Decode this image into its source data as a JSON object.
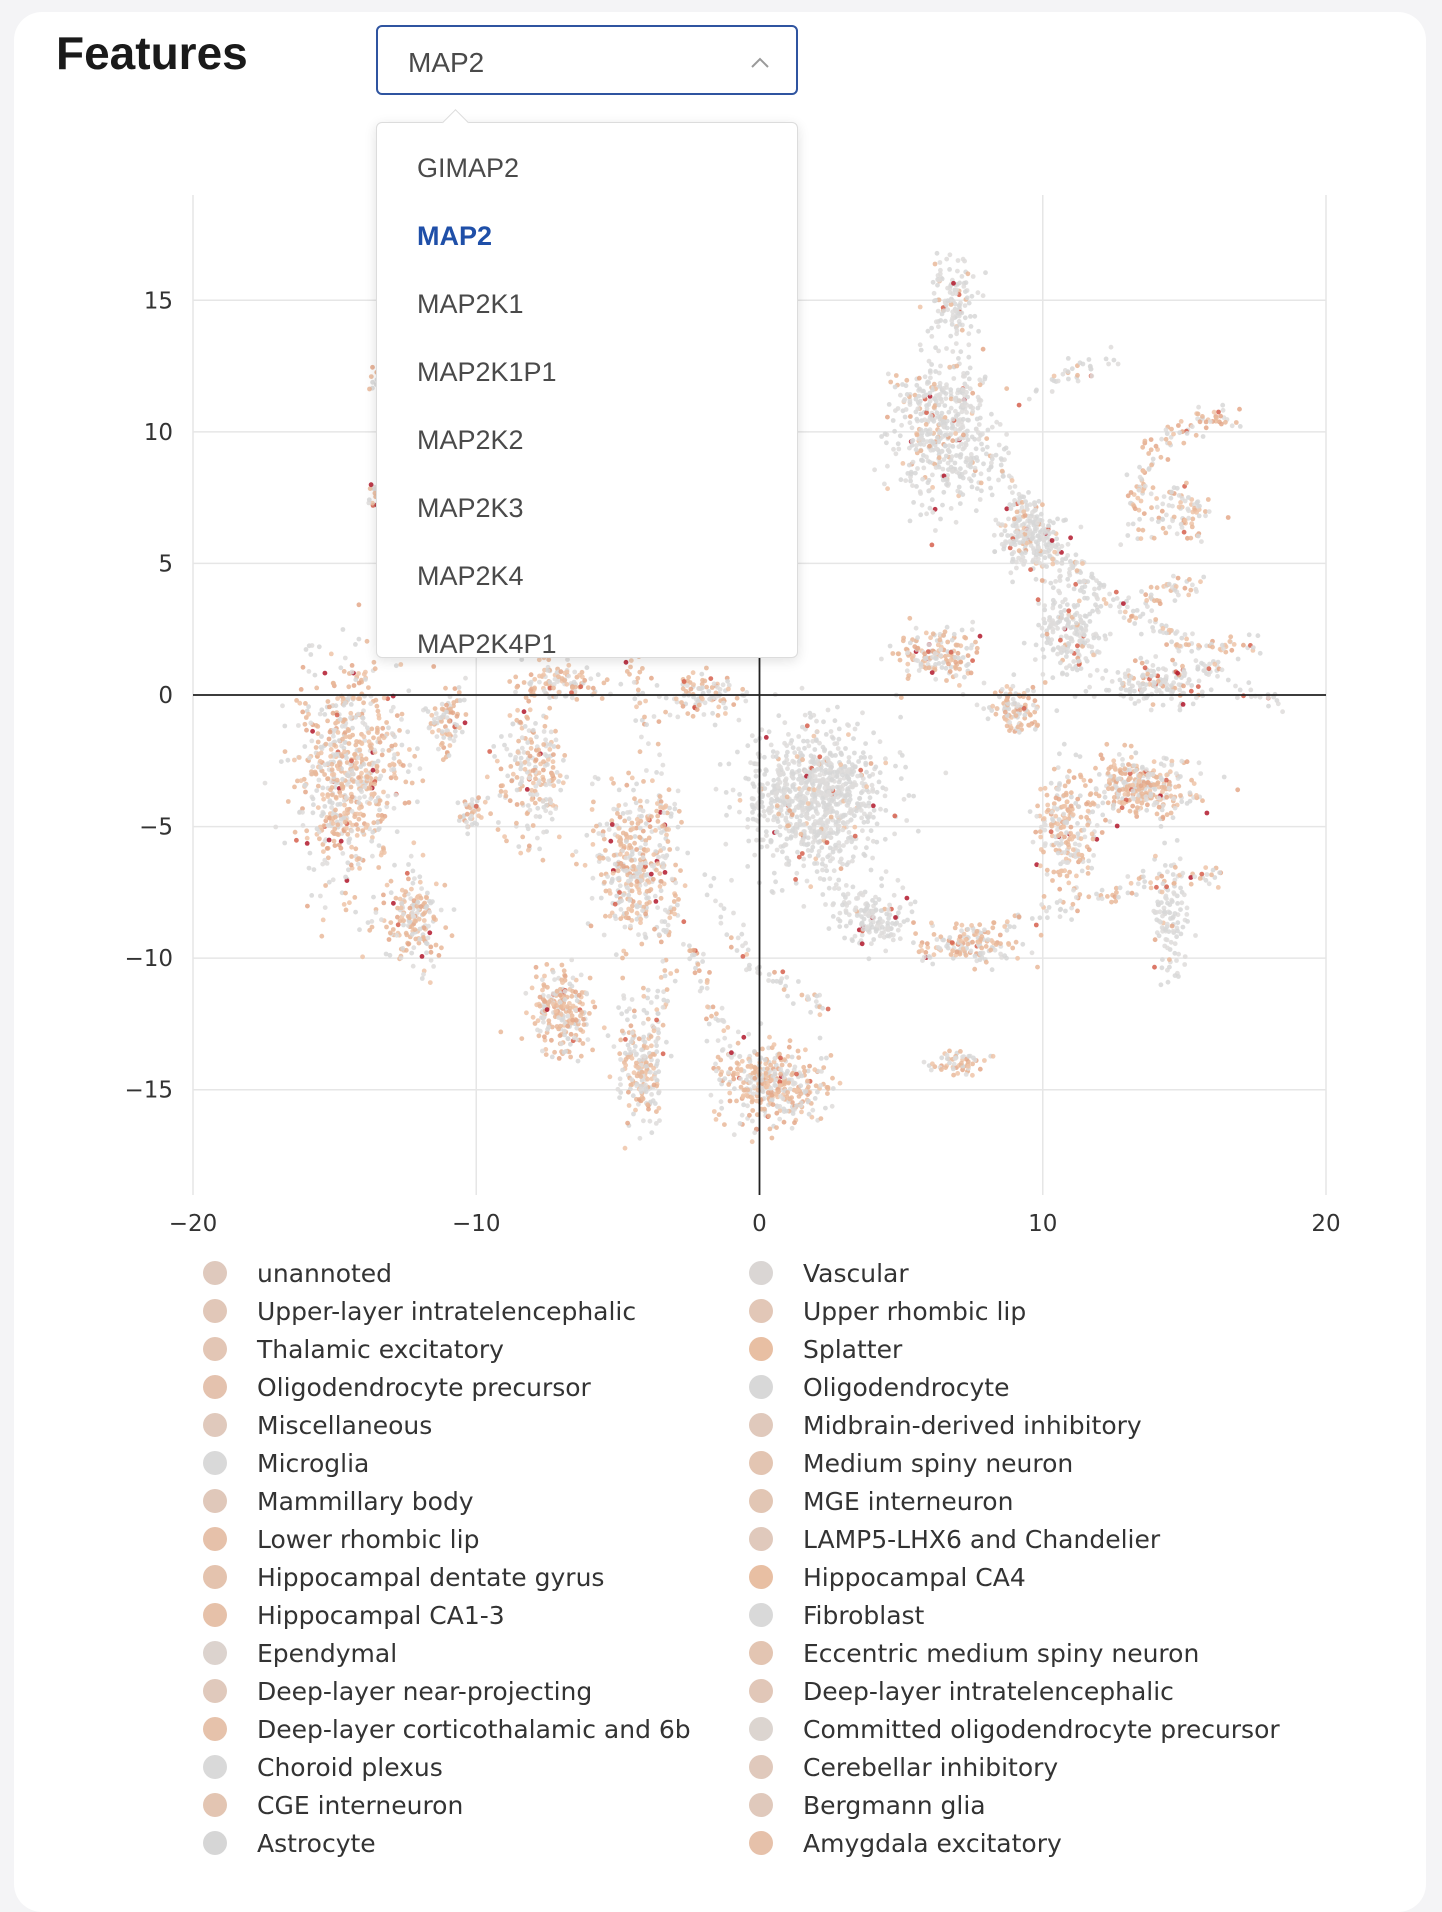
{
  "header": {
    "title": "Features"
  },
  "feature_select": {
    "value": "MAP2",
    "options": [
      "GIMAP2",
      "MAP2",
      "MAP2K1",
      "MAP2K1P1",
      "MAP2K2",
      "MAP2K3",
      "MAP2K4",
      "MAP2K4P1"
    ],
    "selected_index": 1
  },
  "chart_data": {
    "type": "scatter",
    "title": "",
    "xlabel": "",
    "ylabel": "",
    "xlim": [
      -20,
      20
    ],
    "ylim": [
      -19,
      19
    ],
    "x_ticks": [
      -20,
      -10,
      0,
      10,
      20
    ],
    "y_ticks": [
      15,
      10,
      5,
      0,
      -5,
      -10,
      -15
    ],
    "grid": true,
    "zero_lines": true,
    "color_scale": {
      "low": "#d9d9d9",
      "mid": "#e8b898",
      "high": "#b2182b"
    },
    "clusters": [
      {
        "cx": -14.5,
        "cy": -3.0,
        "sx": 1.8,
        "sy": 4.0,
        "n": 700,
        "expr": 0.55
      },
      {
        "cx": -12.3,
        "cy": -8.5,
        "sx": 0.9,
        "sy": 1.6,
        "n": 180,
        "expr": 0.45
      },
      {
        "cx": -11.0,
        "cy": -1.0,
        "sx": 0.6,
        "sy": 1.2,
        "n": 90,
        "expr": 0.5
      },
      {
        "cx": -10.2,
        "cy": -4.5,
        "sx": 0.5,
        "sy": 0.6,
        "n": 40,
        "expr": 0.45
      },
      {
        "cx": -8.0,
        "cy": -3.0,
        "sx": 1.2,
        "sy": 2.2,
        "n": 220,
        "expr": 0.55
      },
      {
        "cx": -7.0,
        "cy": -12.0,
        "sx": 1.0,
        "sy": 1.5,
        "n": 240,
        "expr": 0.65
      },
      {
        "cx": -4.5,
        "cy": -6.5,
        "sx": 1.3,
        "sy": 2.8,
        "n": 380,
        "expr": 0.5
      },
      {
        "cx": -4.2,
        "cy": -14.0,
        "sx": 0.8,
        "sy": 2.0,
        "n": 180,
        "expr": 0.4
      },
      {
        "cx": -7.0,
        "cy": 0.5,
        "sx": 1.5,
        "sy": 0.6,
        "n": 110,
        "expr": 0.5
      },
      {
        "cx": -2.0,
        "cy": 0.0,
        "sx": 1.2,
        "sy": 0.8,
        "n": 100,
        "expr": 0.5
      },
      {
        "cx": 0.5,
        "cy": -14.8,
        "sx": 1.6,
        "sy": 1.4,
        "n": 380,
        "expr": 0.6
      },
      {
        "cx": 2.0,
        "cy": -4.0,
        "sx": 2.2,
        "sy": 2.5,
        "n": 900,
        "expr": 0.05
      },
      {
        "cx": 4.0,
        "cy": -8.5,
        "sx": 1.2,
        "sy": 1.0,
        "n": 160,
        "expr": 0.05
      },
      {
        "cx": 6.5,
        "cy": 10.0,
        "sx": 1.6,
        "sy": 2.5,
        "n": 520,
        "expr": 0.1
      },
      {
        "cx": 6.8,
        "cy": 15.0,
        "sx": 0.8,
        "sy": 1.2,
        "n": 120,
        "expr": 0.08
      },
      {
        "cx": 6.2,
        "cy": 1.5,
        "sx": 1.2,
        "sy": 0.9,
        "n": 170,
        "expr": 0.55
      },
      {
        "cx": 9.5,
        "cy": 6.0,
        "sx": 1.0,
        "sy": 1.2,
        "n": 220,
        "expr": 0.1
      },
      {
        "cx": 11.0,
        "cy": 2.5,
        "sx": 1.0,
        "sy": 2.0,
        "n": 220,
        "expr": 0.1
      },
      {
        "cx": 9.0,
        "cy": -0.5,
        "sx": 0.8,
        "sy": 0.9,
        "n": 110,
        "expr": 0.55
      },
      {
        "cx": 10.8,
        "cy": -5.0,
        "sx": 1.0,
        "sy": 2.0,
        "n": 220,
        "expr": 0.6
      },
      {
        "cx": 13.5,
        "cy": -3.5,
        "sx": 1.7,
        "sy": 1.0,
        "n": 330,
        "expr": 0.6
      },
      {
        "cx": 14.0,
        "cy": 0.5,
        "sx": 1.6,
        "sy": 0.8,
        "n": 160,
        "expr": 0.15
      },
      {
        "cx": 14.5,
        "cy": -8.5,
        "sx": 0.6,
        "sy": 2.0,
        "n": 110,
        "expr": 0.05
      },
      {
        "cx": 15.0,
        "cy": 7.0,
        "sx": 1.0,
        "sy": 1.0,
        "n": 80,
        "expr": 0.5
      },
      {
        "cx": 7.0,
        "cy": -14.0,
        "sx": 0.8,
        "sy": 0.4,
        "n": 60,
        "expr": 0.6
      },
      {
        "cx": 7.5,
        "cy": -9.5,
        "sx": 1.6,
        "sy": 0.7,
        "n": 110,
        "expr": 0.55
      },
      {
        "cx": -13.5,
        "cy": 12.0,
        "sx": 0.2,
        "sy": 0.5,
        "n": 15,
        "expr": 0.5
      },
      {
        "cx": -13.6,
        "cy": 7.5,
        "sx": 0.2,
        "sy": 0.5,
        "n": 15,
        "expr": 0.5
      }
    ],
    "arcs": [
      {
        "pts": [
          [
            -4.5,
            1.5
          ],
          [
            -3.5,
            -3
          ],
          [
            -3.0,
            -8
          ],
          [
            -3.5,
            -12
          ],
          [
            -4.2,
            -16
          ]
        ],
        "n": 140,
        "expr": 0.5
      },
      {
        "pts": [
          [
            -2.5,
            -9.5
          ],
          [
            -1.5,
            -12
          ],
          [
            -1.0,
            -14.5
          ]
        ],
        "n": 60,
        "expr": 0.4
      },
      {
        "pts": [
          [
            8.5,
            9
          ],
          [
            9.5,
            7
          ],
          [
            10.5,
            5.5
          ],
          [
            12,
            4
          ],
          [
            14,
            2.5
          ],
          [
            16,
            1
          ],
          [
            18.5,
            -0.5
          ]
        ],
        "n": 170,
        "expr": 0.12
      },
      {
        "pts": [
          [
            13.5,
            5.5
          ],
          [
            13.3,
            7.5
          ],
          [
            14.0,
            9.5
          ],
          [
            15.5,
            10.5
          ],
          [
            17.0,
            10.5
          ]
        ],
        "n": 110,
        "expr": 0.55
      },
      {
        "pts": [
          [
            13.5,
            3.5
          ],
          [
            14.5,
            4
          ],
          [
            15.5,
            4
          ]
        ],
        "n": 40,
        "expr": 0.55
      },
      {
        "pts": [
          [
            14.0,
            2.5
          ],
          [
            15.0,
            2
          ],
          [
            16.5,
            1.8
          ],
          [
            17.5,
            2
          ]
        ],
        "n": 45,
        "expr": 0.5
      },
      {
        "pts": [
          [
            5.5,
            -10
          ],
          [
            8,
            -9
          ],
          [
            11,
            -8
          ],
          [
            14,
            -7
          ],
          [
            16.5,
            -6.8
          ]
        ],
        "n": 130,
        "expr": 0.55
      },
      {
        "pts": [
          [
            -2.0,
            -7
          ],
          [
            -1.0,
            -9
          ],
          [
            0.0,
            -10.5
          ],
          [
            1.5,
            -11.5
          ],
          [
            2.5,
            -12
          ]
        ],
        "n": 60,
        "expr": 0.15
      },
      {
        "pts": [
          [
            9.5,
            11.5
          ],
          [
            10.5,
            12
          ],
          [
            11.5,
            12.5
          ],
          [
            12.5,
            13.0
          ]
        ],
        "n": 35,
        "expr": 0.08
      }
    ]
  },
  "legend": {
    "left": [
      {
        "label": "unannoted",
        "color": "#dfc9bd"
      },
      {
        "label": "Upper-layer intratelencephalic",
        "color": "#e1c7b8"
      },
      {
        "label": "Thalamic excitatory",
        "color": "#e3c6b5"
      },
      {
        "label": "Oligodendrocyte precursor",
        "color": "#e4c2ae"
      },
      {
        "label": "Miscellaneous",
        "color": "#e0c9bc"
      },
      {
        "label": "Microglia",
        "color": "#d9d9d9"
      },
      {
        "label": "Mammillary body",
        "color": "#e0c8ba"
      },
      {
        "label": "Lower rhombic lip",
        "color": "#e6c1aa"
      },
      {
        "label": "Hippocampal dentate gyrus",
        "color": "#e4c3ae"
      },
      {
        "label": "Hippocampal CA1-3",
        "color": "#e6c1a9"
      },
      {
        "label": "Ependymal",
        "color": "#dcd3ce"
      },
      {
        "label": "Deep-layer near-projecting",
        "color": "#e0c9bc"
      },
      {
        "label": "Deep-layer corticothalamic and 6b",
        "color": "#e6c2ab"
      },
      {
        "label": "Choroid plexus",
        "color": "#d9d9d9"
      },
      {
        "label": "CGE interneuron",
        "color": "#e3c5b2"
      },
      {
        "label": "Astrocyte",
        "color": "#d6d6d6"
      }
    ],
    "right": [
      {
        "label": "Vascular",
        "color": "#dad6d4"
      },
      {
        "label": "Upper rhombic lip",
        "color": "#e2c7b7"
      },
      {
        "label": "Splatter",
        "color": "#e8bfa3"
      },
      {
        "label": "Oligodendrocyte",
        "color": "#d8d8d8"
      },
      {
        "label": "Midbrain-derived inhibitory",
        "color": "#e0c9bc"
      },
      {
        "label": "Medium spiny neuron",
        "color": "#e3c5b2"
      },
      {
        "label": "MGE interneuron",
        "color": "#e2c6b4"
      },
      {
        "label": "LAMP5-LHX6 and Chandelier",
        "color": "#e0c9bc"
      },
      {
        "label": "Hippocampal CA4",
        "color": "#e8bfa3"
      },
      {
        "label": "Fibroblast",
        "color": "#d9d9d9"
      },
      {
        "label": "Eccentric medium spiny neuron",
        "color": "#e3c5b2"
      },
      {
        "label": "Deep-layer intratelencephalic",
        "color": "#e1c7b8"
      },
      {
        "label": "Committed oligodendrocyte precursor",
        "color": "#dcd5d0"
      },
      {
        "label": "Cerebellar inhibitory",
        "color": "#e0c9bc"
      },
      {
        "label": "Bergmann glia",
        "color": "#e0c9bc"
      },
      {
        "label": "Amygdala excitatory",
        "color": "#e6c1aa"
      }
    ]
  }
}
